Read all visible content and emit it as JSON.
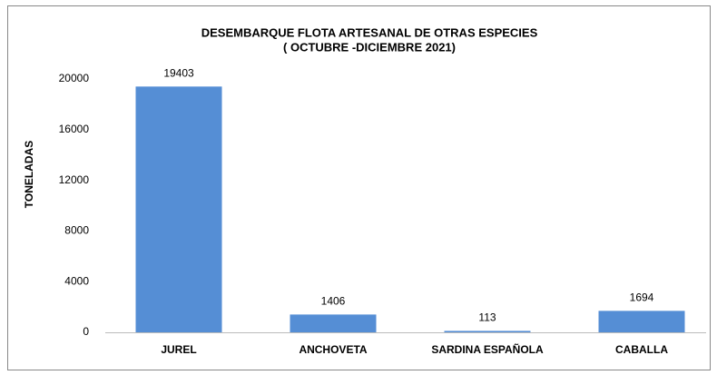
{
  "chart_data": {
    "type": "bar",
    "title": "DESEMBARQUE FLOTA ARTESANAL  DE OTRAS ESPECIES",
    "subtitle": "( OCTUBRE -DICIEMBRE 2021)",
    "y_label": "TONELADAS",
    "categories": [
      "JUREL",
      "ANCHOVETA",
      "SARDINA ESPAÑOLA",
      "CABALLA"
    ],
    "values": [
      19403,
      1406,
      113,
      1694
    ],
    "color": "#558ed5",
    "ylim": [
      0,
      20000
    ],
    "yticks": [
      0,
      4000,
      8000,
      12000,
      16000,
      20000
    ],
    "grid": false
  }
}
